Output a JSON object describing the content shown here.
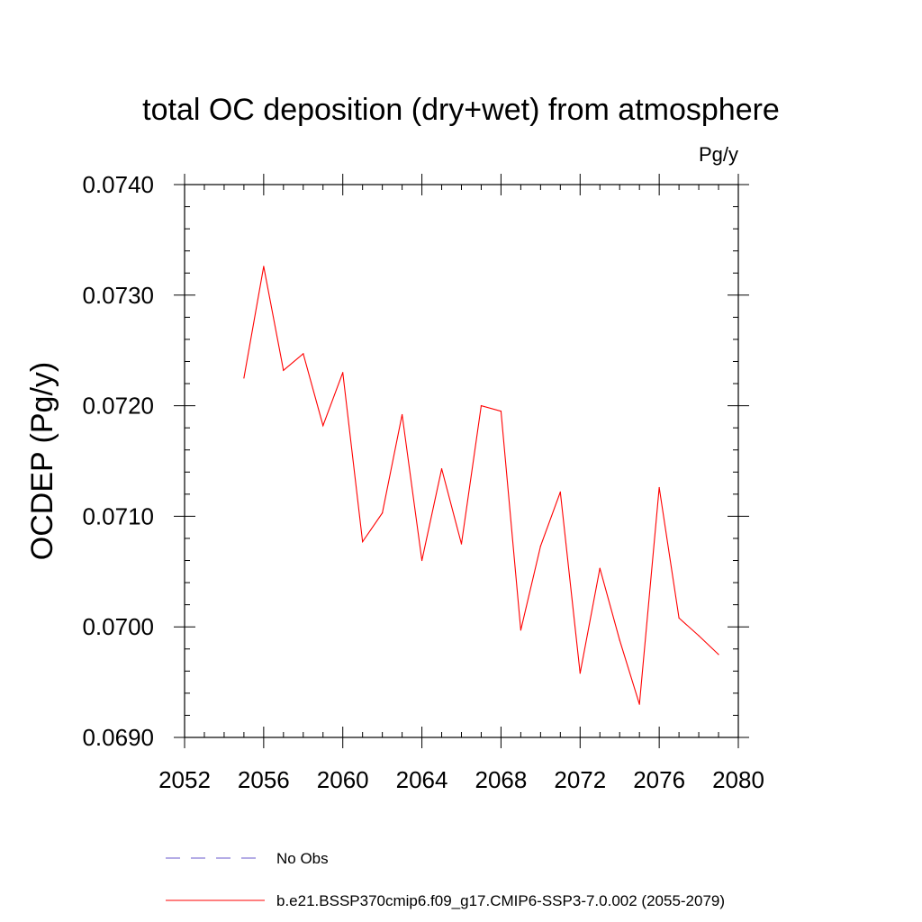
{
  "chart_data": {
    "type": "line",
    "title": "total OC deposition (dry+wet) from atmosphere",
    "units_label": "Pg/y",
    "ylabel": "OCDEP  (Pg/y)",
    "xlabel": "",
    "xlim": [
      2052,
      2080
    ],
    "ylim": [
      0.069,
      0.074
    ],
    "x_major_ticks": [
      2052,
      2056,
      2060,
      2064,
      2068,
      2072,
      2076,
      2080
    ],
    "x_tick_labels": [
      "2052",
      "2056",
      "2060",
      "2064",
      "2068",
      "2072",
      "2076",
      "2080"
    ],
    "y_major_ticks": [
      0.069,
      0.07,
      0.071,
      0.072,
      0.073,
      0.074
    ],
    "y_tick_labels": [
      "0.0690",
      "0.0700",
      "0.0710",
      "0.0720",
      "0.0730",
      "0.0740"
    ],
    "grid": false,
    "legend_placement": "bottom",
    "series": [
      {
        "name": "b.e21.BSSP370cmip6.f09_g17.CMIP6-SSP3-7.0.002 (2055-2079)",
        "color": "#ff0000",
        "style": "solid",
        "x": [
          2055,
          2056,
          2057,
          2058,
          2059,
          2060,
          2061,
          2062,
          2063,
          2064,
          2065,
          2066,
          2067,
          2068,
          2069,
          2070,
          2071,
          2072,
          2073,
          2074,
          2075,
          2076,
          2077,
          2078,
          2079
        ],
        "y": [
          0.07225,
          0.07326,
          0.07232,
          0.07247,
          0.07182,
          0.0723,
          0.07077,
          0.07103,
          0.07192,
          0.0706,
          0.07143,
          0.07075,
          0.072,
          0.07195,
          0.06997,
          0.07073,
          0.07122,
          0.06958,
          0.07053,
          0.06988,
          0.0693,
          0.07126,
          0.07008,
          0.06992,
          0.06975
        ]
      }
    ],
    "legend": [
      {
        "label": "No Obs",
        "color": "#6a5acd",
        "style": "dashed"
      },
      {
        "label": "b.e21.BSSP370cmip6.f09_g17.CMIP6-SSP3-7.0.002 (2055-2079)",
        "color": "#ff0000",
        "style": "solid"
      }
    ]
  }
}
